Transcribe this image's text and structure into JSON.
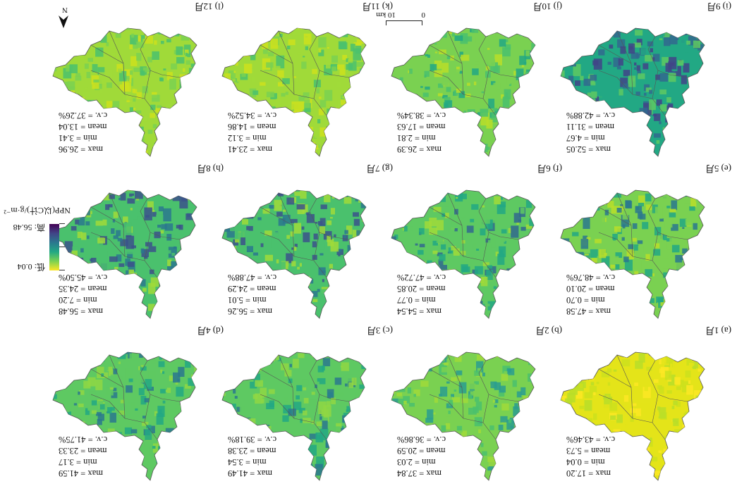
{
  "panels": [
    {
      "label": "(a) 1月",
      "max": "max = 17.20",
      "min": "min = 0.04",
      "mean": "mean = 5.73",
      "cv": "c.v. = 43.46%",
      "palette": [
        "#fde725",
        "#e4e419",
        "#cde11d",
        "#b8de29"
      ]
    },
    {
      "label": "(b) 2月",
      "max": "max = 37.84",
      "min": "min = 2.03",
      "mean": "mean = 20.59",
      "cv": "c.v. = 36.86%",
      "palette": [
        "#a0da39",
        "#7ad151",
        "#4ac16d",
        "#2a9d8f"
      ]
    },
    {
      "label": "(c) 3月",
      "max": "max = 41.49",
      "min": "min = 3.54",
      "mean": "mean = 23.38",
      "cv": "c.v. = 39.18%",
      "palette": [
        "#8fd744",
        "#5ec962",
        "#22a884",
        "#2a788e"
      ]
    },
    {
      "label": "(d) 4月",
      "max": "max = 41.59",
      "min": "min = 3.17",
      "mean": "mean = 23.33",
      "cv": "c.v. = 41.75%",
      "palette": [
        "#8fd744",
        "#5ec962",
        "#22a884",
        "#2a788e"
      ]
    },
    {
      "label": "(e) 5月",
      "max": "max = 47.58",
      "min": "min = 0.70",
      "mean": "mean = 20.10",
      "cv": "c.v. = 48.76%",
      "palette": [
        "#b8de29",
        "#7ad151",
        "#22a884",
        "#2a788e"
      ]
    },
    {
      "label": "(f) 6月",
      "max": "max = 54.54",
      "min": "min = 0.77",
      "mean": "mean = 20.85",
      "cv": "c.v. = 47.72%",
      "palette": [
        "#a0da39",
        "#5ec962",
        "#22a884",
        "#31688e"
      ]
    },
    {
      "label": "(g) 7月",
      "max": "max = 56.26",
      "min": "min = 5.01",
      "mean": "mean = 24.29",
      "cv": "c.v. = 47.88%",
      "palette": [
        "#a0da39",
        "#4ac16d",
        "#2a788e",
        "#3b528b"
      ]
    },
    {
      "label": "(h) 8月",
      "max": "max = 56.48",
      "min": "min = 7.20",
      "mean": "mean = 24.35",
      "cv": "c.v. = 45.50%",
      "palette": [
        "#a0da39",
        "#4ac16d",
        "#2a788e",
        "#3b528b"
      ]
    },
    {
      "label": "(i) 9月",
      "max": "max = 52.05",
      "min": "min = 4.67",
      "mean": "mean = 31.11",
      "cv": "c.v. = 42.88%",
      "palette": [
        "#5ec962",
        "#22a884",
        "#31688e",
        "#414487"
      ]
    },
    {
      "label": "(j) 10月",
      "max": "max = 26.39",
      "min": "min = 2.81",
      "mean": "mean = 17.63",
      "cv": "c.v. = 38.34%",
      "palette": [
        "#b8de29",
        "#7ad151",
        "#4ac16d",
        "#22a884"
      ]
    },
    {
      "label": "(k) 11月",
      "max": "max = 23.41",
      "min": "min = 3.12",
      "mean": "mean = 14.86",
      "cv": "c.v. = 34.52%",
      "palette": [
        "#cde11d",
        "#a0da39",
        "#7ad151",
        "#4ac16d"
      ]
    },
    {
      "label": "(l) 12月",
      "max": "max = 26.96",
      "min": "min = 3.41",
      "mean": "mean = 13.04",
      "cv": "c.v. = 37.26%",
      "palette": [
        "#cde11d",
        "#a0da39",
        "#7ad151",
        "#4ac16d"
      ]
    }
  ],
  "legend": {
    "title": "NPP(以C计)/g·m⁻²",
    "high": "高: 56.48",
    "low": "低: 0.04",
    "colors": [
      "#fde725",
      "#7ad151",
      "#22a884",
      "#2a788e",
      "#414487",
      "#440154"
    ]
  },
  "north": {
    "label": "N"
  },
  "scalebar": {
    "zero": "0",
    "dist": "10 km"
  }
}
